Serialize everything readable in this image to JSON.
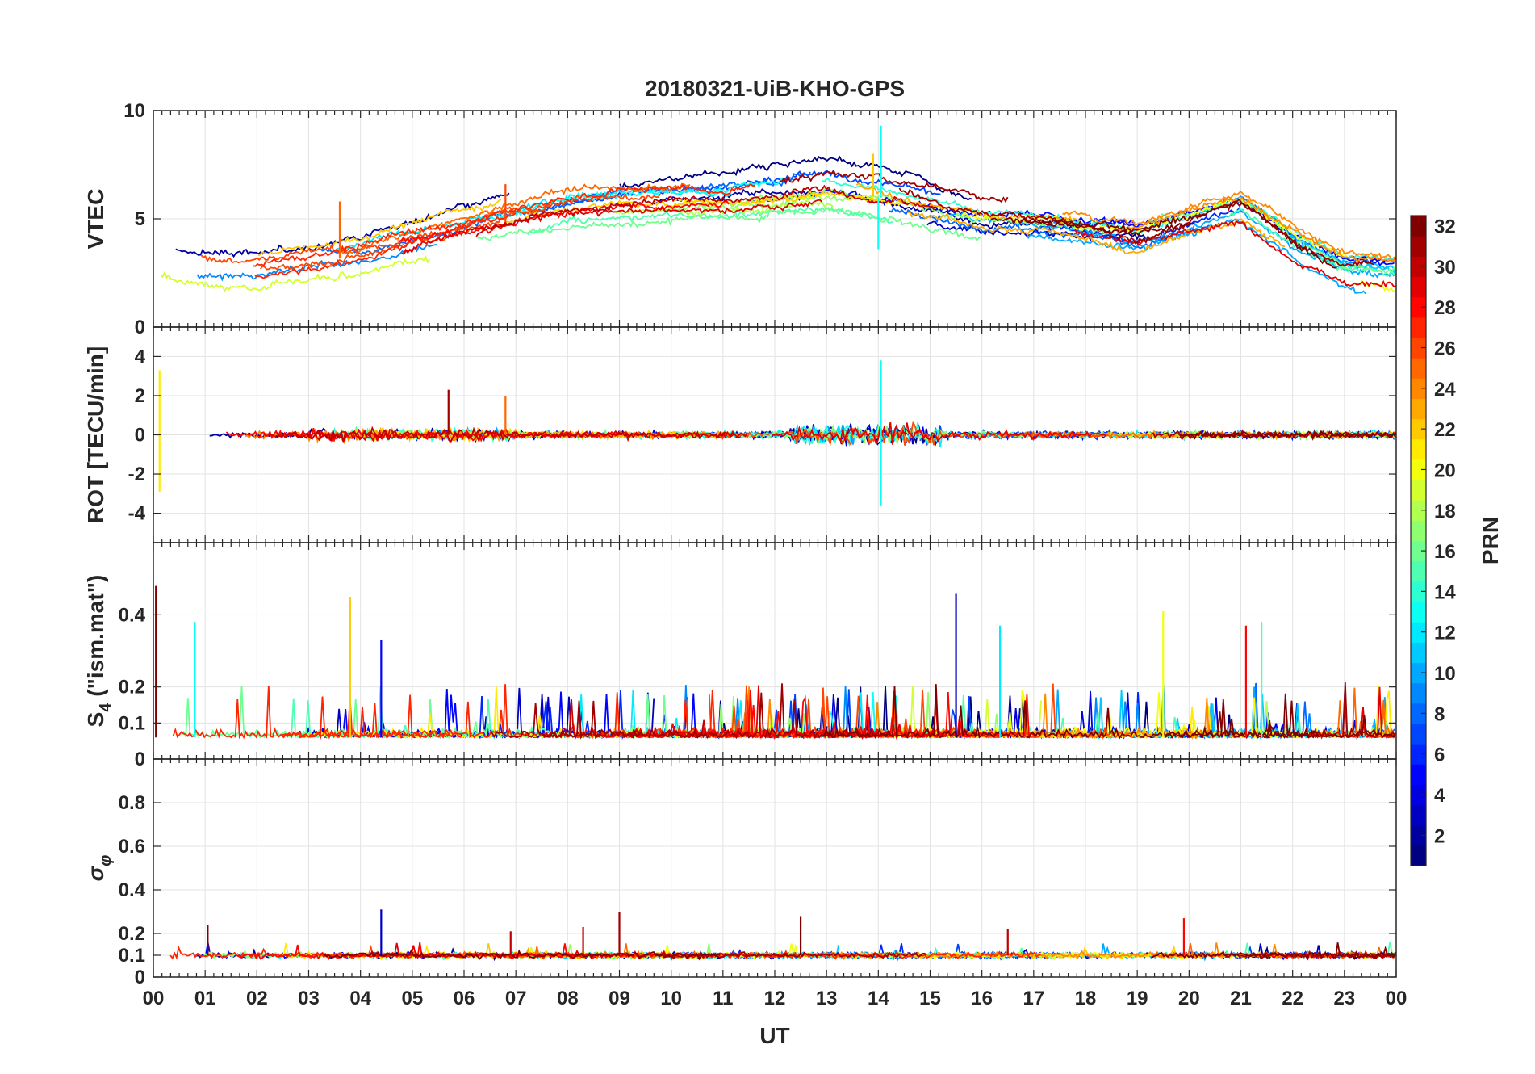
{
  "title": "20180321-UiB-KHO-GPS",
  "xlabel": "UT",
  "x_tick_labels": [
    "00",
    "01",
    "02",
    "03",
    "04",
    "05",
    "06",
    "07",
    "08",
    "09",
    "10",
    "11",
    "12",
    "13",
    "14",
    "15",
    "16",
    "17",
    "18",
    "19",
    "20",
    "21",
    "22",
    "23",
    "00"
  ],
  "colorbar": {
    "label": "PRN",
    "range": [
      1,
      32
    ],
    "tick_values": [
      2,
      4,
      6,
      8,
      10,
      12,
      14,
      16,
      18,
      20,
      22,
      24,
      26,
      28,
      30,
      32
    ],
    "colormap": "jet",
    "levels": 32
  },
  "chart_data": [
    {
      "type": "line",
      "panel": "VTEC",
      "ylabel": "VTEC",
      "xlim": [
        0,
        24
      ],
      "ylim": [
        0,
        10
      ],
      "y_ticks": [
        0,
        5,
        10
      ],
      "y_tick_labels": [
        "0",
        "5",
        "10"
      ],
      "grid": true,
      "series_hint": "32 satellite PRNs colored by PRN; VTEC ~2-3 TECU at 00-04 UT, rising to ~5-7 TECU between 09 and 15 UT, ~4-6 TECU at 16-21 UT, falling to ~1.5-3 TECU by 23-24 UT; brief spike to ~9.3 near 14 UT"
    },
    {
      "type": "line",
      "panel": "ROT",
      "ylabel": "ROT [TECU/min]",
      "xlim": [
        0,
        24
      ],
      "ylim": [
        -5.5,
        5.5
      ],
      "y_ticks": [
        -4,
        -2,
        0,
        2,
        4
      ],
      "y_tick_labels": [
        "-4",
        "-2",
        "0",
        "2",
        "4"
      ],
      "grid": true,
      "series_hint": "rate of TEC fluctuating around 0 within about ±0.5; excursions to ~3.3 and -2.9 near 00 UT, ~2.3 near 05.7 UT, ~2.0 near 06.8 UT, ~3.8 and -3.6 near 14 UT"
    },
    {
      "type": "line",
      "panel": "S4",
      "ylabel": "S4 (\"ism.mat\")",
      "ylabel_main": "S",
      "ylabel_sub": "4",
      "ylabel_rest": " (\"ism.mat\")",
      "xlim": [
        0,
        24
      ],
      "ylim": [
        0,
        0.6
      ],
      "y_ticks": [
        0,
        0.1,
        0.2,
        0.4
      ],
      "y_tick_labels": [
        "0",
        "0.1",
        "0.2",
        "0.4"
      ],
      "grid": true,
      "series_hint": "amplitude scintillation index baseline 0.03-0.10; spikes ~0.48 at 00 UT, ~0.45 near 03.8 UT, ~0.46 near 15.5 UT, ~0.41 near 19.5 UT"
    },
    {
      "type": "line",
      "panel": "SigmaPhi",
      "ylabel": "σφ",
      "ylabel_main": "σ",
      "ylabel_sub": "φ",
      "xlim": [
        0,
        24
      ],
      "ylim": [
        0,
        1
      ],
      "y_ticks": [
        0,
        0.1,
        0.2,
        0.4,
        0.6,
        0.8
      ],
      "y_tick_labels": [
        "0",
        "0.1",
        "0.2",
        "0.4",
        "0.6",
        "0.8"
      ],
      "grid": true,
      "series_hint": "phase scintillation index baseline ~0.08-0.12; spikes ~0.31 near 04.4 UT, ~0.30 near 09 UT, ~0.28 near 12.5 UT, ~0.27 near 19.9 UT"
    }
  ]
}
